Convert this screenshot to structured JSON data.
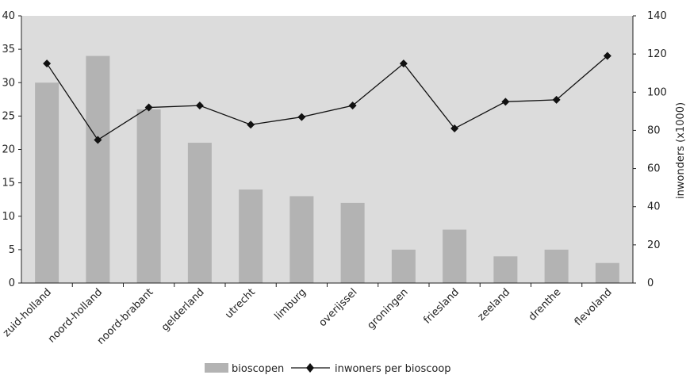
{
  "chart_data": {
    "type": "bar",
    "categories": [
      "zuid-holland",
      "noord-holland",
      "noord-brabant",
      "gelderland",
      "utrecht",
      "limburg",
      "overijssel",
      "groningen",
      "friesland",
      "zeeland",
      "drenthe",
      "flevoland"
    ],
    "series": [
      {
        "name": "bioscopen",
        "type": "bar",
        "axis": "left",
        "color": "#b3b3b3",
        "values": [
          30,
          34,
          26,
          21,
          14,
          13,
          12,
          5,
          8,
          4,
          5,
          3
        ]
      },
      {
        "name": "inwoners per bioscoop",
        "type": "line",
        "axis": "right",
        "color": "#111111",
        "marker": "diamond",
        "values": [
          115,
          75,
          92,
          93,
          83,
          87,
          93,
          115,
          81,
          95,
          96,
          119
        ]
      }
    ],
    "y_left": {
      "label": "",
      "ylim": [
        0,
        40
      ],
      "ticks": [
        0,
        5,
        10,
        15,
        20,
        25,
        30,
        35,
        40
      ]
    },
    "y_right": {
      "label": "inwonders (x1000)",
      "ylim": [
        0,
        140
      ],
      "ticks": [
        0,
        20,
        40,
        60,
        80,
        100,
        120,
        140
      ]
    },
    "title": "",
    "xlabel": "",
    "plot_background": "#dcdcdc",
    "grid": false,
    "legend_position": "bottom"
  }
}
